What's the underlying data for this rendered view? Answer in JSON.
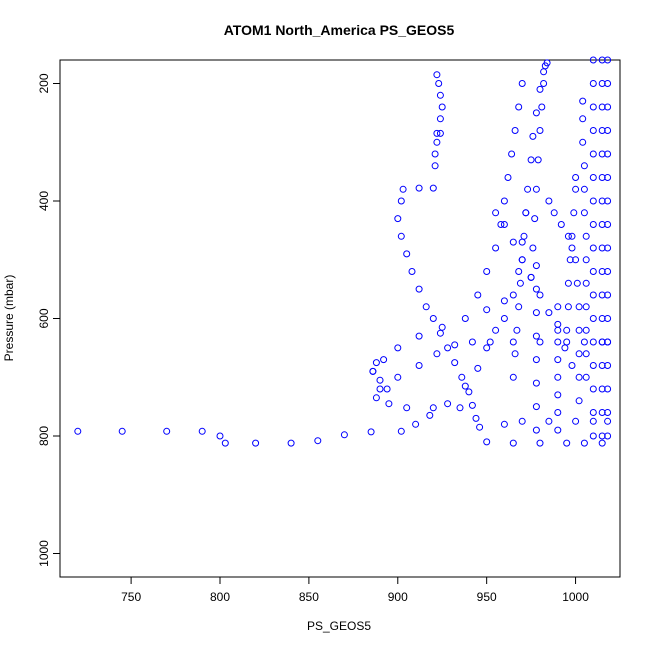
{
  "colors": {
    "series": "#0000ff",
    "axis": "#000000",
    "background": "#ffffff"
  },
  "chart_data": {
    "type": "scatter",
    "title": "ATOM1 North_America PS_GEOS5",
    "xlabel": "PS_GEOS5",
    "ylabel": "Pressure (mbar)",
    "xlim": [
      710,
      1025
    ],
    "ylim": [
      1040,
      160
    ],
    "y_axis_inverted": true,
    "grid": false,
    "legend": "none",
    "marker": "open-circle",
    "x_ticks": [
      750,
      800,
      850,
      900,
      950,
      1000
    ],
    "y_ticks": [
      200,
      400,
      600,
      800,
      1000
    ],
    "x_tick_labels": [
      "750",
      "800",
      "850",
      "900",
      "950",
      "1000"
    ],
    "y_tick_labels": [
      "200",
      "400",
      "600",
      "800",
      "1000"
    ],
    "series": [
      {
        "points": [
          [
            720,
            792
          ],
          [
            745,
            792
          ],
          [
            770,
            792
          ],
          [
            790,
            792
          ],
          [
            800,
            800
          ],
          [
            803,
            812
          ],
          [
            820,
            812
          ],
          [
            840,
            812
          ],
          [
            855,
            808
          ],
          [
            870,
            798
          ],
          [
            885,
            793
          ],
          [
            902,
            792
          ],
          [
            910,
            780
          ],
          [
            918,
            765
          ],
          [
            928,
            745
          ],
          [
            938,
            715
          ],
          [
            945,
            685
          ],
          [
            950,
            650
          ],
          [
            955,
            620
          ],
          [
            960,
            600
          ],
          [
            965,
            560
          ],
          [
            968,
            520
          ],
          [
            970,
            470
          ],
          [
            972,
            420
          ],
          [
            973,
            380
          ],
          [
            975,
            330
          ],
          [
            976,
            290
          ],
          [
            978,
            250
          ],
          [
            980,
            210
          ],
          [
            982,
            180
          ],
          [
            984,
            165
          ],
          [
            903,
            380
          ],
          [
            912,
            378
          ],
          [
            920,
            378
          ],
          [
            921,
            340
          ],
          [
            921,
            320
          ],
          [
            922,
            300
          ],
          [
            922,
            285
          ],
          [
            924,
            285
          ],
          [
            924,
            260
          ],
          [
            925,
            240
          ],
          [
            924,
            220
          ],
          [
            923,
            200
          ],
          [
            922,
            185
          ],
          [
            902,
            400
          ],
          [
            900,
            430
          ],
          [
            902,
            460
          ],
          [
            905,
            490
          ],
          [
            908,
            520
          ],
          [
            912,
            550
          ],
          [
            916,
            580
          ],
          [
            920,
            600
          ],
          [
            924,
            625
          ],
          [
            928,
            650
          ],
          [
            932,
            675
          ],
          [
            936,
            700
          ],
          [
            940,
            725
          ],
          [
            942,
            748
          ],
          [
            944,
            770
          ],
          [
            946,
            785
          ],
          [
            888,
            675
          ],
          [
            886,
            690
          ],
          [
            890,
            705
          ],
          [
            894,
            720
          ],
          [
            888,
            735
          ],
          [
            895,
            745
          ],
          [
            905,
            752
          ],
          [
            920,
            752
          ],
          [
            935,
            752
          ],
          [
            890,
            720
          ],
          [
            900,
            700
          ],
          [
            912,
            680
          ],
          [
            922,
            660
          ],
          [
            932,
            645
          ],
          [
            942,
            640
          ],
          [
            952,
            640
          ],
          [
            965,
            640
          ],
          [
            980,
            640
          ],
          [
            995,
            640
          ],
          [
            1005,
            640
          ],
          [
            1015,
            640
          ],
          [
            1018,
            640
          ],
          [
            886,
            690
          ],
          [
            892,
            670
          ],
          [
            900,
            650
          ],
          [
            912,
            630
          ],
          [
            925,
            615
          ],
          [
            938,
            600
          ],
          [
            950,
            585
          ],
          [
            960,
            570
          ],
          [
            960,
            780
          ],
          [
            970,
            775
          ],
          [
            985,
            775
          ],
          [
            1000,
            775
          ],
          [
            1010,
            775
          ],
          [
            1018,
            775
          ],
          [
            950,
            810
          ],
          [
            965,
            812
          ],
          [
            980,
            812
          ],
          [
            995,
            812
          ],
          [
            1005,
            812
          ],
          [
            1015,
            812
          ],
          [
            945,
            560
          ],
          [
            950,
            520
          ],
          [
            955,
            480
          ],
          [
            958,
            440
          ],
          [
            960,
            400
          ],
          [
            962,
            360
          ],
          [
            964,
            320
          ],
          [
            966,
            280
          ],
          [
            968,
            240
          ],
          [
            970,
            200
          ],
          [
            975,
            530
          ],
          [
            976,
            480
          ],
          [
            977,
            430
          ],
          [
            978,
            380
          ],
          [
            979,
            330
          ],
          [
            980,
            280
          ],
          [
            981,
            240
          ],
          [
            982,
            200
          ],
          [
            983,
            170
          ],
          [
            985,
            400
          ],
          [
            988,
            420
          ],
          [
            992,
            440
          ],
          [
            996,
            460
          ],
          [
            998,
            480
          ],
          [
            1000,
            500
          ],
          [
            1001,
            540
          ],
          [
            1002,
            580
          ],
          [
            1002,
            620
          ],
          [
            1002,
            660
          ],
          [
            1002,
            700
          ],
          [
            1002,
            740
          ],
          [
            995,
            620
          ],
          [
            996,
            580
          ],
          [
            996,
            540
          ],
          [
            997,
            500
          ],
          [
            998,
            460
          ],
          [
            999,
            420
          ],
          [
            1000,
            380
          ],
          [
            1000,
            360
          ],
          [
            1004,
            230
          ],
          [
            1004,
            260
          ],
          [
            1004,
            300
          ],
          [
            1005,
            340
          ],
          [
            1005,
            380
          ],
          [
            1005,
            420
          ],
          [
            1006,
            460
          ],
          [
            1006,
            500
          ],
          [
            1006,
            540
          ],
          [
            1006,
            580
          ],
          [
            1006,
            620
          ],
          [
            1006,
            660
          ],
          [
            1006,
            700
          ],
          [
            1010,
            160
          ],
          [
            1010,
            200
          ],
          [
            1010,
            240
          ],
          [
            1010,
            280
          ],
          [
            1010,
            320
          ],
          [
            1010,
            360
          ],
          [
            1010,
            400
          ],
          [
            1010,
            440
          ],
          [
            1010,
            480
          ],
          [
            1010,
            520
          ],
          [
            1010,
            560
          ],
          [
            1010,
            600
          ],
          [
            1010,
            640
          ],
          [
            1010,
            680
          ],
          [
            1010,
            720
          ],
          [
            1010,
            760
          ],
          [
            1010,
            800
          ],
          [
            1015,
            160
          ],
          [
            1015,
            200
          ],
          [
            1015,
            240
          ],
          [
            1015,
            280
          ],
          [
            1015,
            320
          ],
          [
            1015,
            360
          ],
          [
            1015,
            400
          ],
          [
            1015,
            440
          ],
          [
            1015,
            480
          ],
          [
            1015,
            520
          ],
          [
            1015,
            560
          ],
          [
            1015,
            600
          ],
          [
            1015,
            640
          ],
          [
            1015,
            680
          ],
          [
            1015,
            720
          ],
          [
            1015,
            760
          ],
          [
            1015,
            800
          ],
          [
            1018,
            160
          ],
          [
            1018,
            200
          ],
          [
            1018,
            240
          ],
          [
            1018,
            280
          ],
          [
            1018,
            320
          ],
          [
            1018,
            360
          ],
          [
            1018,
            400
          ],
          [
            1018,
            440
          ],
          [
            1018,
            480
          ],
          [
            1018,
            520
          ],
          [
            1018,
            560
          ],
          [
            1018,
            600
          ],
          [
            1018,
            640
          ],
          [
            1018,
            680
          ],
          [
            1018,
            720
          ],
          [
            1018,
            760
          ],
          [
            1018,
            800
          ],
          [
            990,
            790
          ],
          [
            990,
            760
          ],
          [
            990,
            730
          ],
          [
            990,
            700
          ],
          [
            990,
            670
          ],
          [
            990,
            640
          ],
          [
            990,
            610
          ],
          [
            990,
            580
          ],
          [
            978,
            790
          ],
          [
            978,
            750
          ],
          [
            978,
            710
          ],
          [
            978,
            670
          ],
          [
            978,
            630
          ],
          [
            978,
            590
          ],
          [
            978,
            550
          ],
          [
            978,
            510
          ],
          [
            965,
            700
          ],
          [
            966,
            660
          ],
          [
            967,
            620
          ],
          [
            968,
            580
          ],
          [
            969,
            540
          ],
          [
            970,
            500
          ],
          [
            971,
            460
          ],
          [
            972,
            420
          ],
          [
            955,
            420
          ],
          [
            960,
            440
          ],
          [
            965,
            470
          ],
          [
            970,
            500
          ],
          [
            975,
            530
          ],
          [
            980,
            560
          ],
          [
            985,
            590
          ],
          [
            990,
            620
          ],
          [
            994,
            650
          ],
          [
            998,
            680
          ]
        ]
      }
    ]
  }
}
